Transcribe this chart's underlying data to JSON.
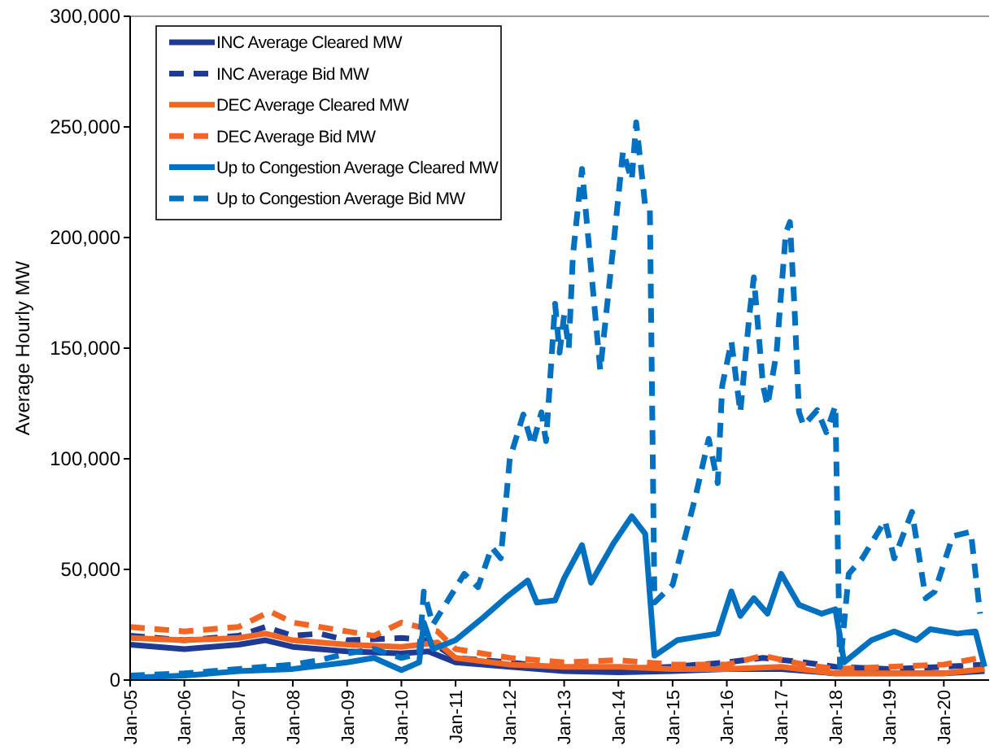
{
  "chart_data": {
    "type": "line",
    "ylabel": "Average Hourly MW",
    "legend": "top left",
    "grid": false,
    "xlim": [
      "2005-01",
      "2020-11"
    ],
    "ylim": [
      0,
      300000
    ],
    "yticks": [
      {
        "value": 0,
        "label": "0"
      },
      {
        "value": 50000,
        "label": "50,000"
      },
      {
        "value": 100000,
        "label": "100,000"
      },
      {
        "value": 150000,
        "label": "150,000"
      },
      {
        "value": 200000,
        "label": "200,000"
      },
      {
        "value": 250000,
        "label": "250,000"
      },
      {
        "value": 300000,
        "label": "300,000"
      }
    ],
    "xticks": [
      {
        "value": "2005-01",
        "label": "Jan-05"
      },
      {
        "value": "2006-01",
        "label": "Jan-06"
      },
      {
        "value": "2007-01",
        "label": "Jan-07"
      },
      {
        "value": "2008-01",
        "label": "Jan-08"
      },
      {
        "value": "2009-01",
        "label": "Jan-09"
      },
      {
        "value": "2010-01",
        "label": "Jan-10"
      },
      {
        "value": "2011-01",
        "label": "Jan-11"
      },
      {
        "value": "2012-01",
        "label": "Jan-12"
      },
      {
        "value": "2013-01",
        "label": "Jan-13"
      },
      {
        "value": "2014-01",
        "label": "Jan-14"
      },
      {
        "value": "2015-01",
        "label": "Jan-15"
      },
      {
        "value": "2016-01",
        "label": "Jan-16"
      },
      {
        "value": "2017-01",
        "label": "Jan-17"
      },
      {
        "value": "2018-01",
        "label": "Jan-18"
      },
      {
        "value": "2019-01",
        "label": "Jan-19"
      },
      {
        "value": "2020-01",
        "label": "Jan-20"
      }
    ],
    "series": [
      {
        "name": "INC Average Cleared MW",
        "line_style": "solid",
        "color": "#1f3a93",
        "x": [
          "2005-01",
          "2006-01",
          "2007-01",
          "2007-07",
          "2008-01",
          "2009-01",
          "2010-01",
          "2010-07",
          "2011-01",
          "2012-01",
          "2013-01",
          "2014-01",
          "2015-01",
          "2016-01",
          "2017-01",
          "2018-01",
          "2019-01",
          "2020-01",
          "2020-10"
        ],
        "values": [
          16000,
          14000,
          16000,
          18000,
          15000,
          13000,
          12000,
          13000,
          8000,
          6000,
          4000,
          3500,
          4000,
          5000,
          5000,
          3000,
          3000,
          3000,
          4000
        ]
      },
      {
        "name": "INC Average Bid MW",
        "line_style": "dashed",
        "color": "#1f3a93",
        "x": [
          "2005-01",
          "2006-01",
          "2007-01",
          "2007-07",
          "2008-01",
          "2008-07",
          "2009-01",
          "2010-01",
          "2010-07",
          "2011-01",
          "2012-01",
          "2013-01",
          "2014-01",
          "2015-01",
          "2016-01",
          "2016-09",
          "2017-06",
          "2018-01",
          "2019-01",
          "2020-01",
          "2020-10"
        ],
        "values": [
          20000,
          18000,
          20000,
          24000,
          20000,
          21000,
          18000,
          19000,
          18000,
          10000,
          8000,
          5000,
          5000,
          6000,
          8000,
          10000,
          8000,
          6000,
          5000,
          6000,
          7000
        ]
      },
      {
        "name": "DEC Average Cleared MW",
        "line_style": "solid",
        "color": "#f26522",
        "x": [
          "2005-01",
          "2006-01",
          "2007-01",
          "2007-07",
          "2008-01",
          "2009-01",
          "2010-01",
          "2010-09",
          "2011-01",
          "2012-01",
          "2013-01",
          "2014-01",
          "2015-01",
          "2016-01",
          "2017-01",
          "2018-01",
          "2019-01",
          "2020-01",
          "2020-10"
        ],
        "values": [
          19000,
          18000,
          19000,
          21000,
          18000,
          16000,
          15000,
          17000,
          10000,
          7000,
          6000,
          6000,
          5000,
          5000,
          6000,
          3000,
          3000,
          3000,
          5000
        ]
      },
      {
        "name": "DEC Average Bid MW",
        "line_style": "dashed",
        "color": "#f26522",
        "x": [
          "2005-01",
          "2006-01",
          "2007-01",
          "2007-08",
          "2008-01",
          "2008-07",
          "2009-01",
          "2009-07",
          "2010-01",
          "2010-09",
          "2011-01",
          "2012-01",
          "2013-01",
          "2014-01",
          "2015-01",
          "2016-01",
          "2016-09",
          "2017-06",
          "2018-01",
          "2019-01",
          "2020-01",
          "2020-09",
          "2020-10"
        ],
        "values": [
          24000,
          22000,
          24000,
          31000,
          26000,
          24000,
          22000,
          20000,
          26000,
          22000,
          14000,
          10000,
          8000,
          9000,
          7000,
          7000,
          11000,
          7000,
          5000,
          6000,
          7000,
          10000,
          6000
        ]
      },
      {
        "name": "Up to Congestion Average Cleared MW",
        "line_style": "solid",
        "color": "#0070c0",
        "x": [
          "2005-01",
          "2006-01",
          "2007-01",
          "2008-01",
          "2009-01",
          "2009-07",
          "2010-01",
          "2010-05",
          "2010-06",
          "2010-08",
          "2011-01",
          "2011-07",
          "2011-12",
          "2012-05",
          "2012-07",
          "2012-11",
          "2013-01",
          "2013-05",
          "2013-07",
          "2013-12",
          "2014-04",
          "2014-07",
          "2014-09",
          "2015-02",
          "2015-11",
          "2016-02",
          "2016-04",
          "2016-07",
          "2016-10",
          "2017-01",
          "2017-05",
          "2017-10",
          "2018-01",
          "2018-03",
          "2018-09",
          "2019-02",
          "2019-07",
          "2019-10",
          "2020-04",
          "2020-08",
          "2020-10"
        ],
        "values": [
          1000,
          2000,
          4000,
          5000,
          8000,
          10000,
          4500,
          8000,
          26000,
          14000,
          18000,
          28000,
          37000,
          45000,
          35000,
          36000,
          46000,
          61000,
          44000,
          62000,
          74000,
          66000,
          11000,
          18000,
          21000,
          40000,
          29000,
          37000,
          30000,
          48000,
          34000,
          30000,
          32000,
          8000,
          18000,
          22000,
          18000,
          23000,
          21000,
          22000,
          6000
        ]
      },
      {
        "name": "Up to Congestion Average Bid MW",
        "line_style": "dashed",
        "color": "#0070c0",
        "x": [
          "2005-01",
          "2006-01",
          "2007-01",
          "2008-01",
          "2008-07",
          "2009-01",
          "2009-07",
          "2010-01",
          "2010-05",
          "2010-06",
          "2010-08",
          "2010-11",
          "2011-03",
          "2011-06",
          "2011-09",
          "2011-11",
          "2012-01",
          "2012-04",
          "2012-06",
          "2012-08",
          "2012-09",
          "2012-11",
          "2012-12",
          "2013-01",
          "2013-02",
          "2013-03",
          "2013-05",
          "2013-09",
          "2013-12",
          "2014-02",
          "2014-04",
          "2014-05",
          "2014-07",
          "2014-08",
          "2014-09",
          "2015-01",
          "2015-06",
          "2015-09",
          "2015-11",
          "2015-12",
          "2016-02",
          "2016-04",
          "2016-06",
          "2016-07",
          "2016-09",
          "2016-10",
          "2016-12",
          "2017-02",
          "2017-03",
          "2017-04",
          "2017-05",
          "2017-06",
          "2017-09",
          "2017-11",
          "2018-01",
          "2018-02",
          "2018-04",
          "2018-07",
          "2018-12",
          "2019-02",
          "2019-06",
          "2019-09",
          "2019-11",
          "2020-03",
          "2020-07",
          "2020-09"
        ],
        "values": [
          2000,
          3000,
          5000,
          7000,
          9000,
          12000,
          14000,
          10000,
          12000,
          40000,
          25000,
          35000,
          48000,
          42000,
          60000,
          55000,
          100000,
          120000,
          106000,
          121000,
          108000,
          170000,
          148000,
          165000,
          150000,
          192000,
          231000,
          140000,
          198000,
          239000,
          226000,
          252000,
          214000,
          213000,
          35000,
          43000,
          82000,
          109000,
          89000,
          133000,
          153000,
          121000,
          165000,
          182000,
          133000,
          124000,
          148000,
          202000,
          207000,
          168000,
          121000,
          115000,
          122000,
          112000,
          124000,
          6000,
          48000,
          55000,
          72000,
          55000,
          76000,
          37000,
          40000,
          65000,
          67000,
          30000
        ]
      }
    ]
  }
}
